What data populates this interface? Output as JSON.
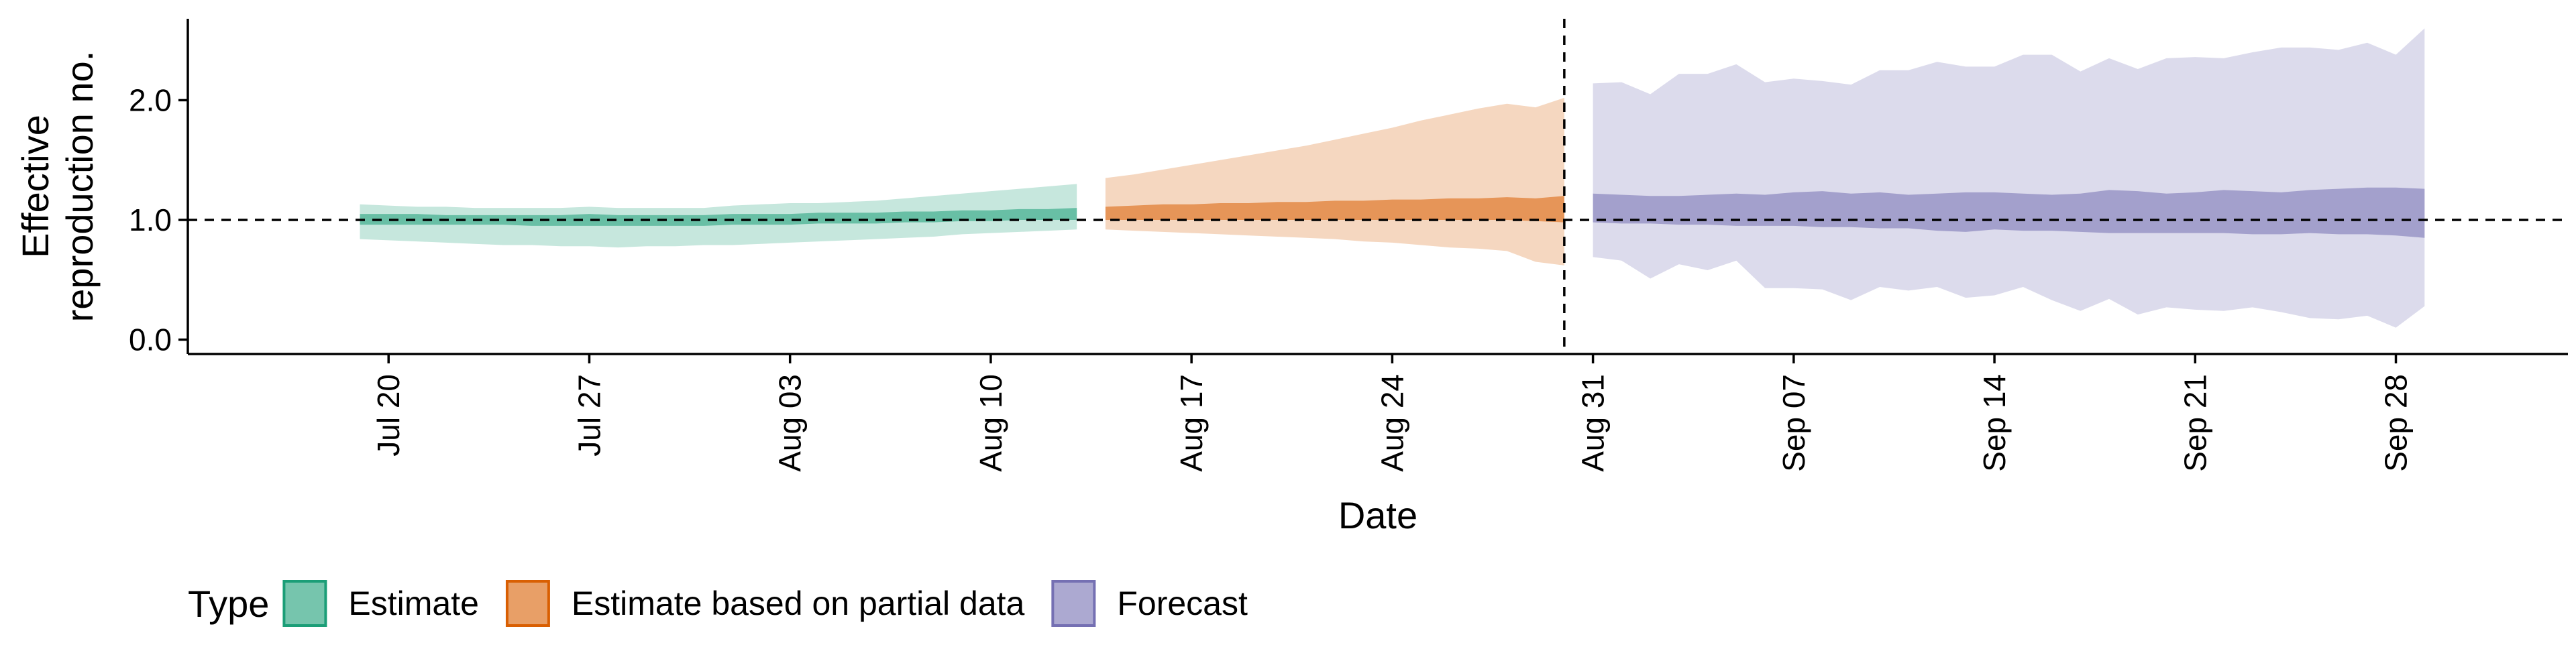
{
  "chart_data": {
    "type": "area",
    "title": "",
    "xlabel": "Date",
    "ylabel": "Effective reproduction no.",
    "ylabel_lines": [
      "Effective",
      "reproduction no."
    ],
    "x_ticks": [
      {
        "date": "2020-07-20",
        "label": "Jul 20"
      },
      {
        "date": "2020-07-27",
        "label": "Jul 27"
      },
      {
        "date": "2020-08-03",
        "label": "Aug 03"
      },
      {
        "date": "2020-08-10",
        "label": "Aug 10"
      },
      {
        "date": "2020-08-17",
        "label": "Aug 17"
      },
      {
        "date": "2020-08-24",
        "label": "Aug 24"
      },
      {
        "date": "2020-08-31",
        "label": "Aug 31"
      },
      {
        "date": "2020-09-07",
        "label": "Sep 07"
      },
      {
        "date": "2020-09-14",
        "label": "Sep 14"
      },
      {
        "date": "2020-09-21",
        "label": "Sep 21"
      },
      {
        "date": "2020-09-28",
        "label": "Sep 28"
      }
    ],
    "y_ticks": [
      {
        "value": 0.0,
        "label": "0.0"
      },
      {
        "value": 1.0,
        "label": "1.0"
      },
      {
        "value": 2.0,
        "label": "2.0"
      }
    ],
    "xlim": [
      "2020-07-13",
      "2020-10-04"
    ],
    "ylim": [
      -0.12,
      2.68
    ],
    "grid": false,
    "reference_lines": {
      "horizontal_y": 1.0,
      "vertical_date": "2020-08-30"
    },
    "legend": {
      "title": "Type",
      "position": "bottom",
      "entries": [
        {
          "label": "Estimate",
          "color": "#1b9e77"
        },
        {
          "label": "Estimate based on partial data",
          "color": "#d95f02"
        },
        {
          "label": "Forecast",
          "color": "#7570b3"
        }
      ]
    },
    "series": [
      {
        "name": "Estimate",
        "color": "#1b9e77",
        "x": [
          "2020-07-19",
          "2020-07-20",
          "2020-07-21",
          "2020-07-22",
          "2020-07-23",
          "2020-07-24",
          "2020-07-25",
          "2020-07-26",
          "2020-07-27",
          "2020-07-28",
          "2020-07-29",
          "2020-07-30",
          "2020-07-31",
          "2020-08-01",
          "2020-08-02",
          "2020-08-03",
          "2020-08-04",
          "2020-08-05",
          "2020-08-06",
          "2020-08-07",
          "2020-08-08",
          "2020-08-09",
          "2020-08-10",
          "2020-08-11",
          "2020-08-12",
          "2020-08-13"
        ],
        "outer_upper": [
          1.13,
          1.12,
          1.11,
          1.11,
          1.1,
          1.1,
          1.1,
          1.1,
          1.11,
          1.1,
          1.1,
          1.1,
          1.1,
          1.12,
          1.13,
          1.14,
          1.14,
          1.15,
          1.16,
          1.18,
          1.2,
          1.22,
          1.24,
          1.26,
          1.28,
          1.3
        ],
        "inner_upper": [
          1.05,
          1.05,
          1.05,
          1.04,
          1.04,
          1.04,
          1.04,
          1.04,
          1.05,
          1.04,
          1.04,
          1.04,
          1.04,
          1.05,
          1.05,
          1.05,
          1.06,
          1.06,
          1.06,
          1.07,
          1.07,
          1.08,
          1.08,
          1.09,
          1.09,
          1.1
        ],
        "inner_lower": [
          0.96,
          0.96,
          0.96,
          0.96,
          0.96,
          0.96,
          0.95,
          0.95,
          0.95,
          0.95,
          0.95,
          0.95,
          0.95,
          0.96,
          0.96,
          0.96,
          0.97,
          0.97,
          0.97,
          0.98,
          0.98,
          0.99,
          0.99,
          1.0,
          1.0,
          1.0
        ],
        "outer_lower": [
          0.84,
          0.83,
          0.82,
          0.81,
          0.8,
          0.79,
          0.79,
          0.78,
          0.78,
          0.77,
          0.78,
          0.78,
          0.79,
          0.79,
          0.8,
          0.81,
          0.82,
          0.83,
          0.84,
          0.85,
          0.86,
          0.88,
          0.89,
          0.9,
          0.91,
          0.92
        ]
      },
      {
        "name": "Estimate based on partial data",
        "color": "#d95f02",
        "x": [
          "2020-08-14",
          "2020-08-15",
          "2020-08-16",
          "2020-08-17",
          "2020-08-18",
          "2020-08-19",
          "2020-08-20",
          "2020-08-21",
          "2020-08-22",
          "2020-08-23",
          "2020-08-24",
          "2020-08-25",
          "2020-08-26",
          "2020-08-27",
          "2020-08-28",
          "2020-08-29",
          "2020-08-30"
        ],
        "outer_upper": [
          1.35,
          1.38,
          1.42,
          1.46,
          1.5,
          1.54,
          1.58,
          1.62,
          1.67,
          1.72,
          1.77,
          1.83,
          1.88,
          1.93,
          1.97,
          1.94,
          2.02
        ],
        "inner_upper": [
          1.11,
          1.12,
          1.13,
          1.13,
          1.14,
          1.14,
          1.15,
          1.15,
          1.16,
          1.16,
          1.17,
          1.17,
          1.18,
          1.18,
          1.19,
          1.18,
          1.2
        ],
        "inner_lower": [
          1.0,
          1.0,
          1.0,
          1.0,
          1.0,
          1.0,
          1.0,
          1.0,
          1.0,
          1.0,
          1.0,
          1.0,
          1.0,
          1.0,
          1.0,
          0.99,
          0.98
        ],
        "outer_lower": [
          0.92,
          0.91,
          0.9,
          0.89,
          0.88,
          0.87,
          0.86,
          0.85,
          0.84,
          0.82,
          0.81,
          0.79,
          0.77,
          0.76,
          0.74,
          0.65,
          0.62
        ]
      },
      {
        "name": "Forecast",
        "color": "#7570b3",
        "x": [
          "2020-08-31",
          "2020-09-01",
          "2020-09-02",
          "2020-09-03",
          "2020-09-04",
          "2020-09-05",
          "2020-09-06",
          "2020-09-07",
          "2020-09-08",
          "2020-09-09",
          "2020-09-10",
          "2020-09-11",
          "2020-09-12",
          "2020-09-13",
          "2020-09-14",
          "2020-09-15",
          "2020-09-16",
          "2020-09-17",
          "2020-09-18",
          "2020-09-19",
          "2020-09-20",
          "2020-09-21",
          "2020-09-22",
          "2020-09-23",
          "2020-09-24",
          "2020-09-25",
          "2020-09-26",
          "2020-09-27",
          "2020-09-28",
          "2020-09-29"
        ],
        "outer_upper": [
          2.14,
          2.15,
          2.05,
          2.22,
          2.22,
          2.3,
          2.15,
          2.18,
          2.16,
          2.13,
          2.25,
          2.25,
          2.32,
          2.28,
          2.28,
          2.38,
          2.38,
          2.24,
          2.35,
          2.26,
          2.35,
          2.36,
          2.35,
          2.4,
          2.44,
          2.44,
          2.42,
          2.48,
          2.38,
          2.6
        ],
        "inner_upper": [
          1.22,
          1.21,
          1.2,
          1.2,
          1.21,
          1.22,
          1.21,
          1.23,
          1.24,
          1.22,
          1.23,
          1.21,
          1.22,
          1.23,
          1.23,
          1.22,
          1.21,
          1.22,
          1.25,
          1.24,
          1.22,
          1.23,
          1.25,
          1.24,
          1.23,
          1.25,
          1.26,
          1.27,
          1.27,
          1.26
        ],
        "inner_lower": [
          0.98,
          0.97,
          0.97,
          0.96,
          0.96,
          0.95,
          0.95,
          0.95,
          0.94,
          0.94,
          0.93,
          0.93,
          0.91,
          0.9,
          0.92,
          0.91,
          0.91,
          0.9,
          0.89,
          0.89,
          0.89,
          0.89,
          0.89,
          0.88,
          0.88,
          0.89,
          0.88,
          0.88,
          0.87,
          0.85
        ],
        "outer_lower": [
          0.69,
          0.66,
          0.51,
          0.63,
          0.58,
          0.66,
          0.43,
          0.43,
          0.42,
          0.33,
          0.44,
          0.41,
          0.44,
          0.35,
          0.37,
          0.44,
          0.33,
          0.24,
          0.34,
          0.21,
          0.27,
          0.25,
          0.24,
          0.27,
          0.23,
          0.18,
          0.17,
          0.2,
          0.1,
          0.28
        ]
      }
    ]
  }
}
